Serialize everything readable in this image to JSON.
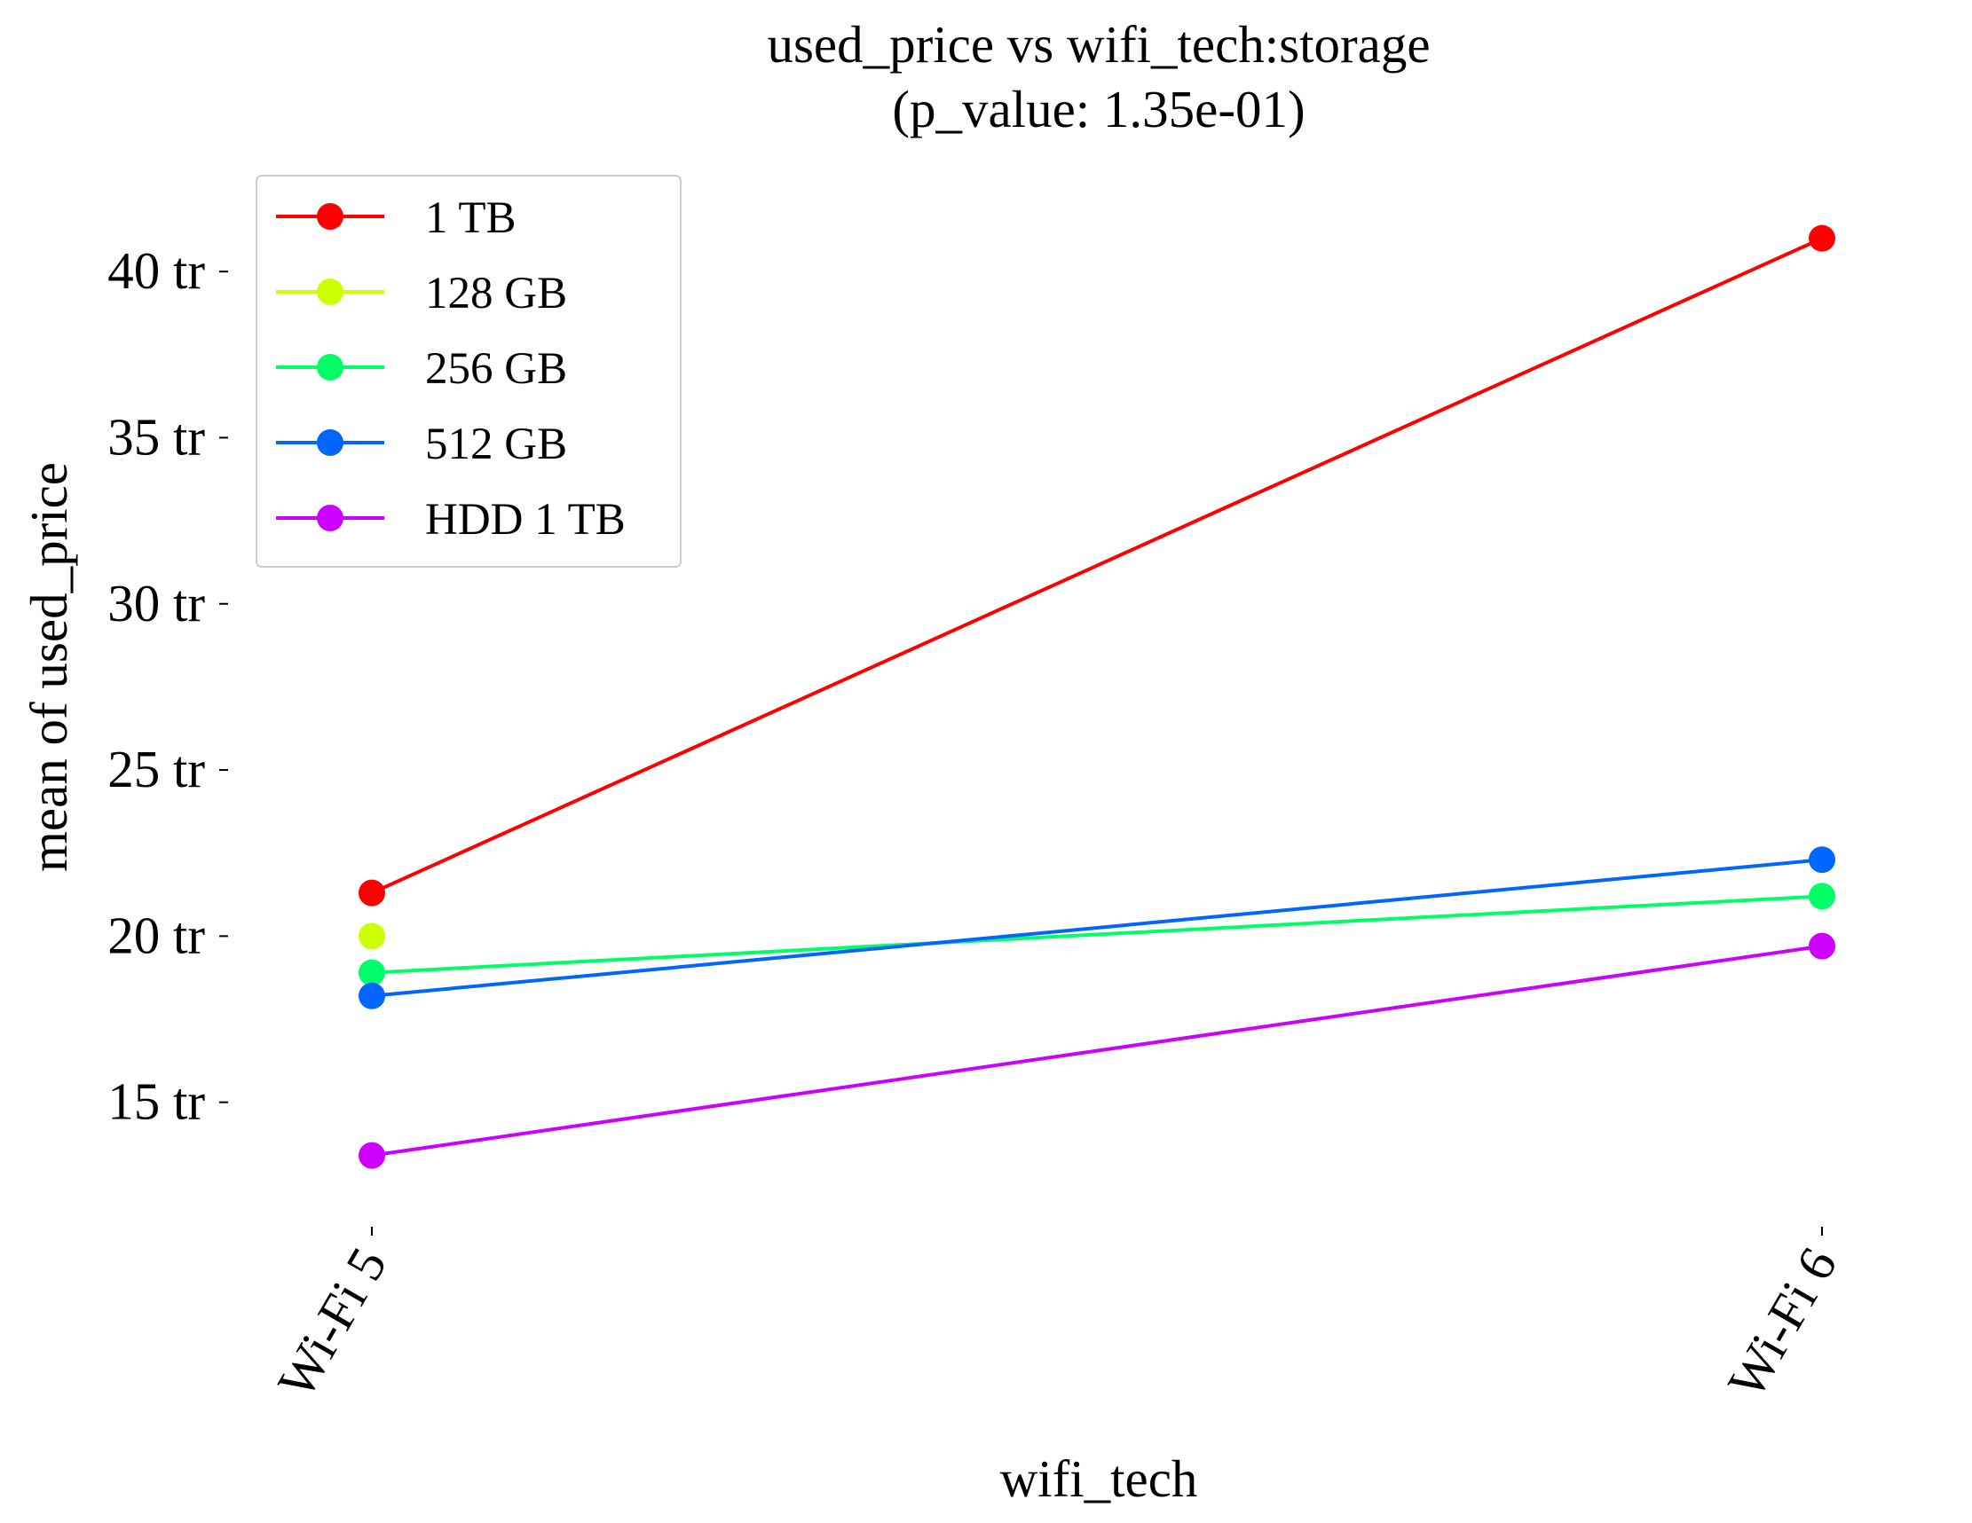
{
  "chart_data": {
    "type": "line",
    "title": "used_price vs wifi_tech:storage",
    "subtitle": "(p_value: 1.35e-01)",
    "xlabel": "wifi_tech",
    "ylabel": "mean of used_price",
    "categories": [
      "Wi-Fi 5",
      "Wi-Fi 6"
    ],
    "y_ticks": [
      15,
      20,
      25,
      30,
      35,
      40
    ],
    "y_tick_labels": [
      "15 tr",
      "20 tr",
      "25 tr",
      "30 tr",
      "35 tr",
      "40 tr"
    ],
    "ylim": [
      10.8,
      42.7
    ],
    "grid": false,
    "legend_position": "top-left",
    "series": [
      {
        "name": "1 TB",
        "color": "#ff0000",
        "values": [
          21.3,
          41.0
        ]
      },
      {
        "name": "128 GB",
        "color": "#ccff00",
        "values": [
          20.0,
          null
        ]
      },
      {
        "name": "256 GB",
        "color": "#00ff66",
        "values": [
          18.9,
          21.2
        ]
      },
      {
        "name": "512 GB",
        "color": "#0066ff",
        "values": [
          18.2,
          22.3
        ]
      },
      {
        "name": "HDD 1 TB",
        "color": "#cc00ff",
        "values": [
          13.4,
          19.7
        ]
      }
    ]
  }
}
